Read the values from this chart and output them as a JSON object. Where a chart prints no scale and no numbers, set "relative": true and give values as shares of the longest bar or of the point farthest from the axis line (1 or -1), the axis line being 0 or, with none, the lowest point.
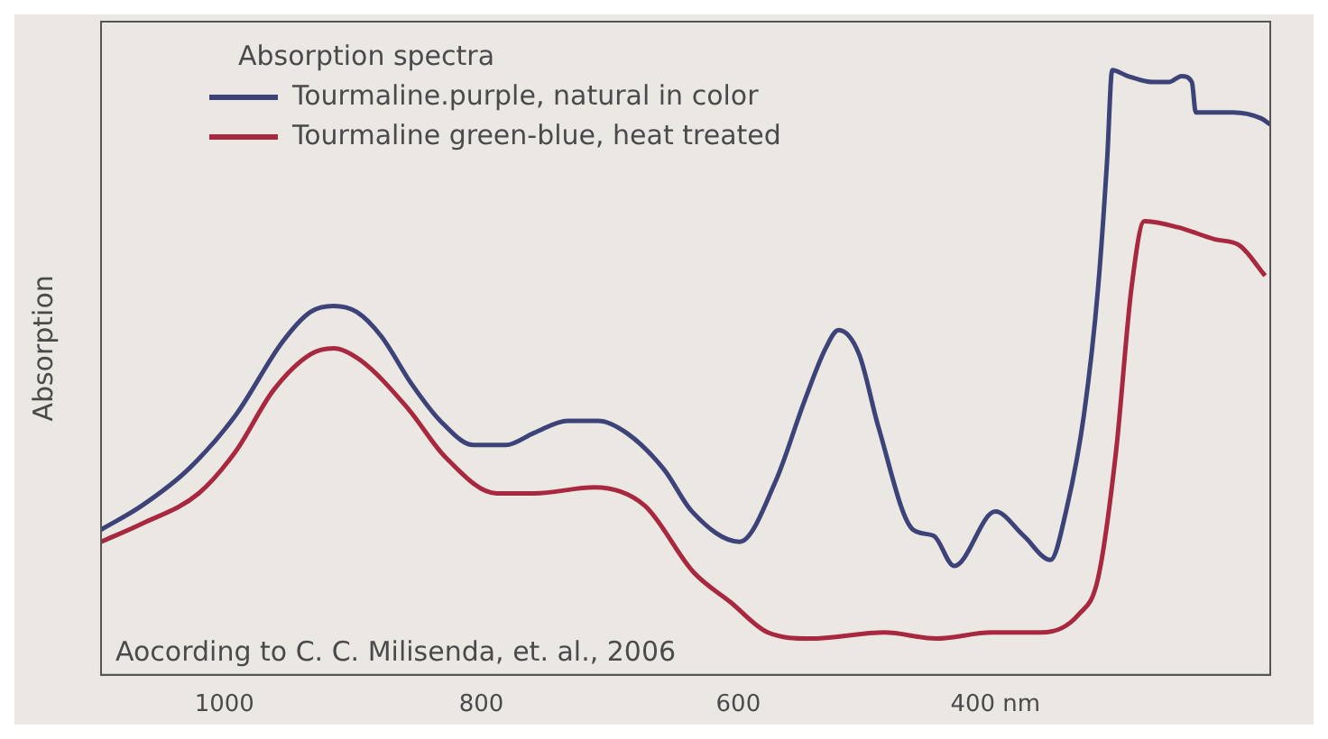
{
  "chart_data": {
    "type": "line",
    "relative": true,
    "ylabel": "Absorption",
    "legend_title": "Absorption spectra",
    "legend": "top left",
    "grid": false,
    "marker": "none",
    "line_style": "solid",
    "xlim": [
      1096,
      186
    ],
    "xticks": [
      1000,
      800,
      600,
      {
        "value": 400,
        "label": "400 nm"
      }
    ],
    "annotations": [
      "Aocording to C. C. Milisenda, et. al., 2006"
    ],
    "series": [
      {
        "name": "Tourmaline.purple, natural in color",
        "color": "#3d4378",
        "x": [
          1096,
          1064,
          1028,
          991,
          955,
          933,
          915,
          897,
          878,
          854,
          832,
          806,
          781,
          759,
          733,
          709,
          687,
          658,
          636,
          599,
          571,
          549,
          532,
          522,
          506,
          491,
          464,
          448,
          432,
          400,
          378,
          357,
          345,
          331,
          320,
          313,
          309,
          297,
          277,
          265,
          255,
          247,
          244,
          215,
          193,
          186
        ],
        "values": [
          0.24,
          0.28,
          0.34,
          0.43,
          0.55,
          0.6,
          0.61,
          0.6,
          0.56,
          0.48,
          0.42,
          0.38,
          0.38,
          0.4,
          0.42,
          0.42,
          0.4,
          0.34,
          0.27,
          0.22,
          0.32,
          0.45,
          0.54,
          0.57,
          0.53,
          0.41,
          0.24,
          0.23,
          0.18,
          0.27,
          0.23,
          0.19,
          0.27,
          0.43,
          0.64,
          0.85,
          1.0,
          0.99,
          0.98,
          0.98,
          0.99,
          0.98,
          0.93,
          0.93,
          0.92,
          0.91
        ]
      },
      {
        "name": "Tourmaline green-blue, heat treated",
        "color": "#a8283f",
        "x": [
          1096,
          1064,
          1020,
          991,
          962,
          933,
          915,
          894,
          857,
          828,
          788,
          759,
          712,
          673,
          635,
          606,
          577,
          544,
          486,
          446,
          403,
          364,
          335,
          320,
          306,
          294,
          284,
          258,
          229,
          210,
          190
        ],
        "values": [
          0.22,
          0.25,
          0.3,
          0.37,
          0.47,
          0.53,
          0.54,
          0.52,
          0.44,
          0.36,
          0.3,
          0.3,
          0.31,
          0.28,
          0.17,
          0.12,
          0.07,
          0.06,
          0.07,
          0.06,
          0.07,
          0.07,
          0.1,
          0.16,
          0.37,
          0.64,
          0.75,
          0.74,
          0.72,
          0.71,
          0.66
        ]
      }
    ]
  }
}
